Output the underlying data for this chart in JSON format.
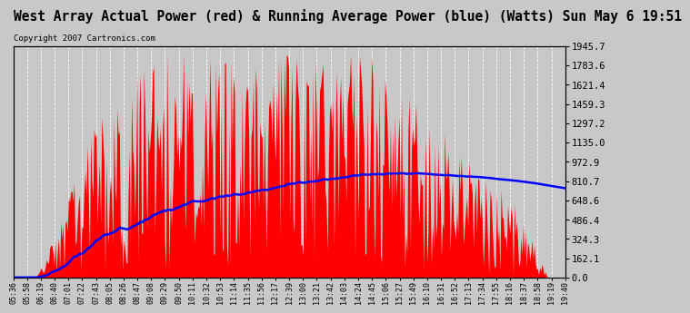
{
  "title": "West Array Actual Power (red) & Running Average Power (blue) (Watts) Sun May 6 19:51",
  "copyright": "Copyright 2007 Cartronics.com",
  "ylabel_right_ticks": [
    0.0,
    162.1,
    324.3,
    486.4,
    648.6,
    810.7,
    972.9,
    1135.0,
    1297.2,
    1459.3,
    1621.4,
    1783.6,
    1945.7
  ],
  "ymax": 1945.7,
  "ymin": 0.0,
  "bg_color": "#c8c8c8",
  "plot_bg_color": "#c8c8c8",
  "bar_color": "#ff0000",
  "avg_color": "#0000ff",
  "title_fontsize": 10.5,
  "copyright_fontsize": 6.5,
  "x_tick_fontsize": 6,
  "y_tick_fontsize": 7.5,
  "x_labels": [
    "05:36",
    "05:58",
    "06:19",
    "06:40",
    "07:01",
    "07:22",
    "07:43",
    "08:05",
    "08:26",
    "08:47",
    "09:08",
    "09:29",
    "09:50",
    "10:11",
    "10:32",
    "10:53",
    "11:14",
    "11:35",
    "11:56",
    "12:17",
    "12:39",
    "13:00",
    "13:21",
    "13:42",
    "14:03",
    "14:24",
    "14:45",
    "15:06",
    "15:27",
    "15:49",
    "16:10",
    "16:31",
    "16:52",
    "17:13",
    "17:34",
    "17:55",
    "18:16",
    "18:37",
    "18:58",
    "19:19",
    "19:40"
  ],
  "n_dense": 500,
  "max_power": 1900.0,
  "seed": 42
}
